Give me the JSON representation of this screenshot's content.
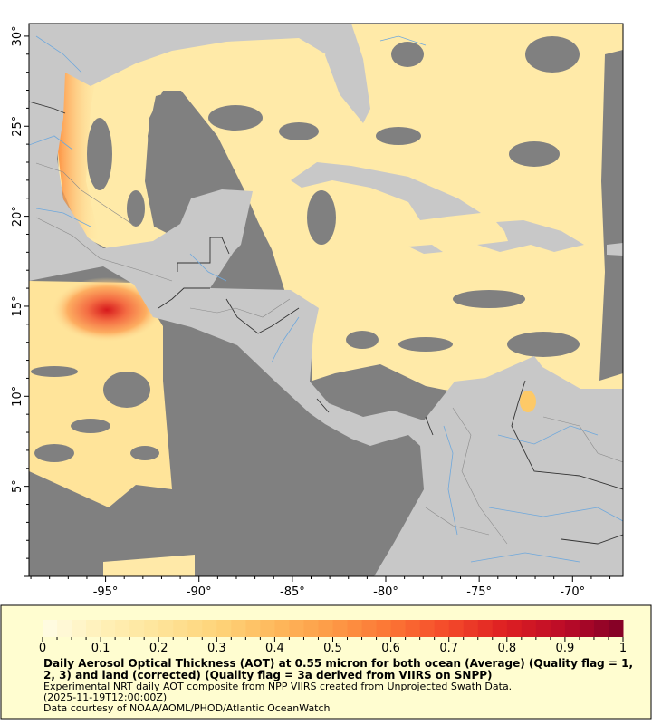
{
  "map": {
    "lon_range": [
      -99.1,
      -67.3
    ],
    "lat_range": [
      0.0,
      30.7
    ],
    "lon_ticks": [
      {
        "value": -95,
        "label": "-95°"
      },
      {
        "value": -90,
        "label": "-90°"
      },
      {
        "value": -85,
        "label": "-85°"
      },
      {
        "value": -80,
        "label": "-80°"
      },
      {
        "value": -75,
        "label": "-75°"
      },
      {
        "value": -70,
        "label": "-70°"
      }
    ],
    "lat_ticks": [
      {
        "value": 30,
        "label": "30°"
      },
      {
        "value": 25,
        "label": "25°"
      },
      {
        "value": 20,
        "label": "20°"
      },
      {
        "value": 15,
        "label": "15°"
      },
      {
        "value": 10,
        "label": "10°"
      },
      {
        "value": 5,
        "label": "5°"
      }
    ],
    "colors": {
      "no_data": "#808080",
      "land": "#c8c8c8",
      "rivers": "#6fa8dc",
      "borders": "#333333"
    }
  },
  "colorbar": {
    "min": 0,
    "max": 1,
    "tick_labels": [
      "0",
      "0.1",
      "0.2",
      "0.3",
      "0.4",
      "0.5",
      "0.6",
      "0.7",
      "0.8",
      "0.9",
      "1"
    ],
    "color_stops": [
      "#fffde6",
      "#fff0b8",
      "#fee49a",
      "#fed47a",
      "#feb95c",
      "#fd9a46",
      "#fc7434",
      "#f4492a",
      "#dd1e22",
      "#bb0a28",
      "#800026"
    ]
  },
  "legend": {
    "title_line1": "Daily Aerosol Optical Thickness (AOT) at 0.55 micron for both ocean (Average) (Quality flag = 1,",
    "title_line2": "2, 3) and land (corrected) (Quality flag = 3a derived from VIIRS on SNPP)",
    "description": "Experimental NRT daily AOT composite from NPP VIIRS created from Unprojected Swath Data.",
    "time": "(2025-11-19T12:00:00Z)",
    "credit": "Data courtesy of NOAA/AOML/PHOD/Atlantic OceanWatch"
  }
}
